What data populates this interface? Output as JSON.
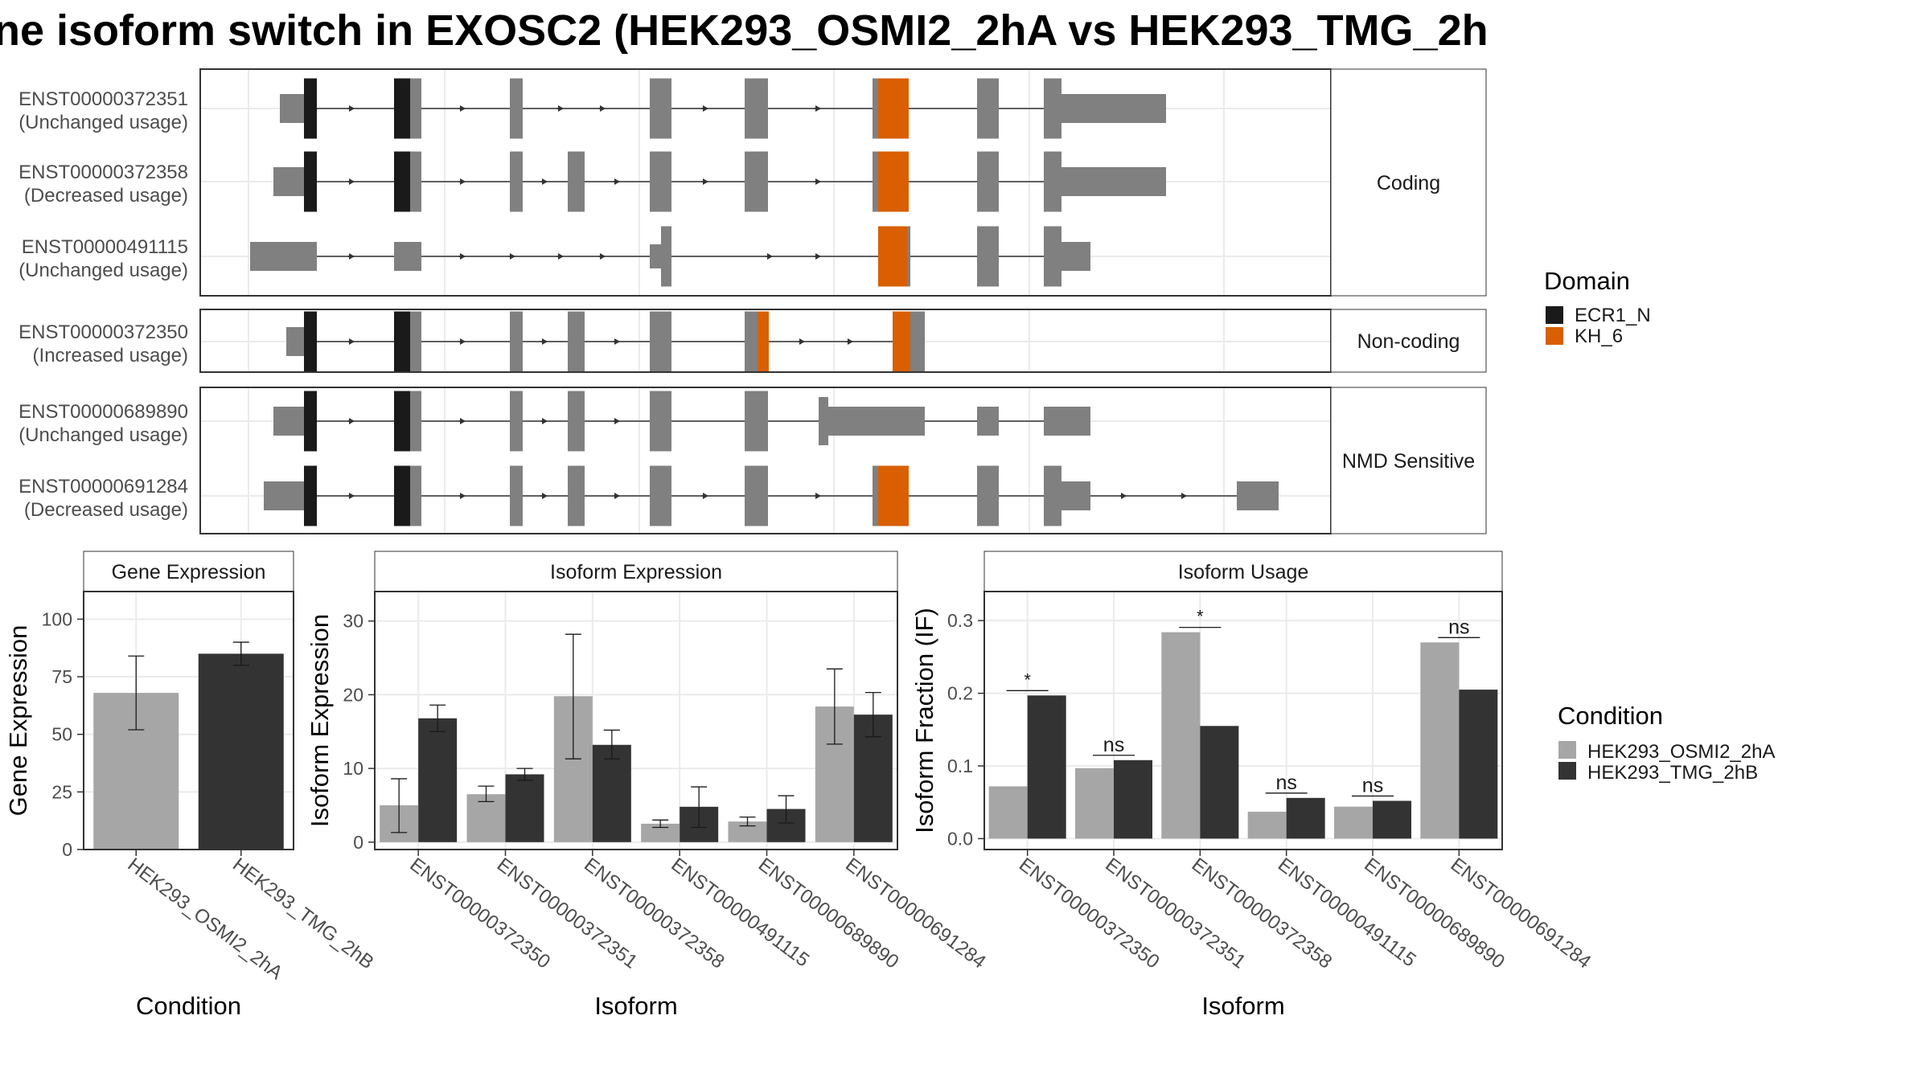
{
  "title": "ne isoform switch in EXOSC2 (HEK293_OSMI2_2hA vs HEK293_TMG_2h",
  "colors": {
    "exon": "#808080",
    "ecr1": "#1a1a1a",
    "kh6": "#d95f02",
    "cond_a": "#a6a6a6",
    "cond_b": "#333333",
    "frame": "#333333",
    "grid": "#ebebeb",
    "strip_bg": "#ffffff"
  },
  "structure": {
    "facets": [
      {
        "label": "Coding",
        "tracks": [
          {
            "id": "ENST00000372351",
            "usage": "(Unchanged usage)"
          },
          {
            "id": "ENST00000372358",
            "usage": "(Decreased usage)"
          },
          {
            "id": "ENST00000491115",
            "usage": "(Unchanged usage)"
          }
        ]
      },
      {
        "label": "Non-coding",
        "tracks": [
          {
            "id": "ENST00000372350",
            "usage": "(Increased usage)"
          }
        ]
      },
      {
        "label": "NMD Sensitive",
        "tracks": [
          {
            "id": "ENST00000689890",
            "usage": "(Unchanged usage)"
          },
          {
            "id": "ENST00000691284",
            "usage": "(Decreased usage)"
          }
        ]
      }
    ],
    "legend": {
      "title": "Domain",
      "items": [
        {
          "label": "ECR1_N",
          "color": "#1a1a1a"
        },
        {
          "label": "KH_6",
          "color": "#d95f02"
        }
      ]
    }
  },
  "chart_data": [
    {
      "type": "bar",
      "panel": "Gene Expression",
      "categories": [
        "HEK293_OSMI2_2hA",
        "HEK293_TMG_2hB"
      ],
      "values": [
        68,
        85
      ],
      "errors": [
        [
          52,
          84
        ],
        [
          80,
          90
        ]
      ],
      "xlabel": "Condition",
      "ylabel": "Gene Expression",
      "ylim": [
        0,
        112
      ],
      "yticks": [
        0,
        25,
        50,
        75,
        100
      ]
    },
    {
      "type": "bar",
      "panel": "Isoform Expression",
      "categories": [
        "ENST00000372350",
        "ENST00000372351",
        "ENST00000372358",
        "ENST00000491115",
        "ENST00000689890",
        "ENST00000691284"
      ],
      "series": [
        {
          "name": "HEK293_OSMI2_2hA",
          "values": [
            5.0,
            6.5,
            19.8,
            2.5,
            2.8,
            18.4
          ],
          "errors": [
            [
              1.3,
              8.6
            ],
            [
              5.5,
              7.6
            ],
            [
              11.3,
              28.2
            ],
            [
              2.0,
              3.0
            ],
            [
              2.2,
              3.4
            ],
            [
              13.3,
              23.5
            ]
          ]
        },
        {
          "name": "HEK293_TMG_2hB",
          "values": [
            16.8,
            9.2,
            13.2,
            4.8,
            4.5,
            17.3
          ],
          "errors": [
            [
              15.0,
              18.6
            ],
            [
              8.4,
              10.0
            ],
            [
              11.3,
              15.2
            ],
            [
              2.0,
              7.5
            ],
            [
              2.6,
              6.3
            ],
            [
              14.3,
              20.3
            ]
          ]
        }
      ],
      "xlabel": "Isoform",
      "ylabel": "Isoform Expression",
      "ylim": [
        -1,
        34
      ],
      "yticks": [
        0,
        10,
        20,
        30
      ]
    },
    {
      "type": "bar",
      "panel": "Isoform Usage",
      "categories": [
        "ENST00000372350",
        "ENST00000372351",
        "ENST00000372358",
        "ENST00000491115",
        "ENST00000689890",
        "ENST00000691284"
      ],
      "series": [
        {
          "name": "HEK293_OSMI2_2hA",
          "values": [
            0.072,
            0.097,
            0.284,
            0.037,
            0.044,
            0.27
          ]
        },
        {
          "name": "HEK293_TMG_2hB",
          "values": [
            0.197,
            0.108,
            0.155,
            0.056,
            0.052,
            0.205
          ]
        }
      ],
      "significance": [
        "*",
        "ns",
        "*",
        "ns",
        "ns",
        "ns"
      ],
      "xlabel": "Isoform",
      "ylabel": "Isoform Fraction (IF)",
      "ylim": [
        -0.015,
        0.34
      ],
      "yticks": [
        0.0,
        0.1,
        0.2,
        0.3
      ],
      "ytick_labels": [
        "0.0",
        "0.1",
        "0.2",
        "0.3"
      ]
    }
  ],
  "condition_legend": {
    "title": "Condition",
    "items": [
      {
        "label": "HEK293_OSMI2_2hA",
        "color": "#a6a6a6"
      },
      {
        "label": "HEK293_TMG_2hB",
        "color": "#333333"
      }
    ]
  }
}
